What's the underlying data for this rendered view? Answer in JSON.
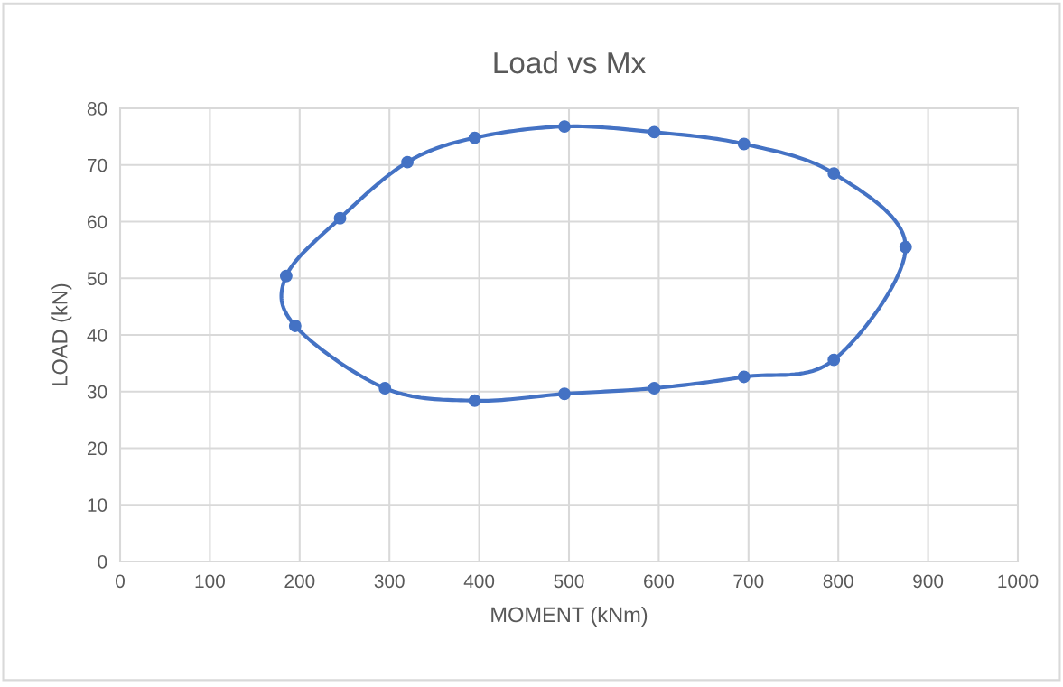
{
  "chart_data": {
    "type": "scatter",
    "title": "Load vs Mx",
    "xlabel": "MOMENT (kNm)",
    "ylabel": "LOAD (kN)",
    "series": [
      {
        "color": "#4472c4",
        "x": [
          185,
          245,
          320,
          395,
          495,
          595,
          695,
          795,
          875,
          795,
          695,
          595,
          495,
          395,
          295,
          195
        ],
        "values": [
          50.4,
          60.6,
          70.5,
          74.8,
          76.8,
          75.8,
          73.7,
          68.5,
          55.5,
          35.6,
          32.6,
          30.6,
          29.6,
          28.4,
          30.6,
          41.6
        ]
      }
    ],
    "xlim": [
      0,
      1000
    ],
    "xticks": [
      0,
      100,
      200,
      300,
      400,
      500,
      600,
      700,
      800,
      900,
      1000
    ],
    "ylim": [
      0,
      80
    ],
    "yticks": [
      0,
      10,
      20,
      30,
      40,
      50,
      60,
      70,
      80
    ],
    "grid": true,
    "legend": false,
    "marker": "circle",
    "line_style": "solid"
  }
}
